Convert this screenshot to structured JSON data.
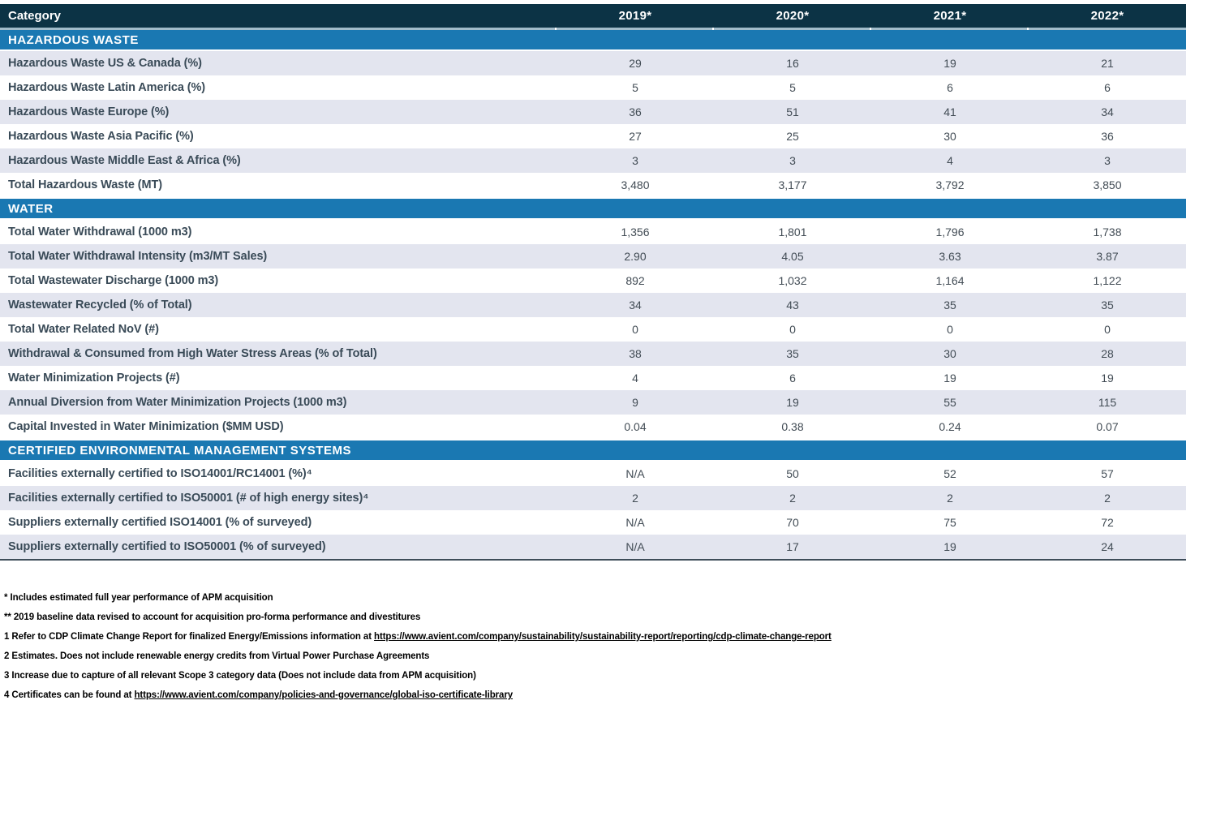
{
  "table": {
    "header": {
      "category_label": "Category",
      "years": [
        "2019*",
        "2020*",
        "2021*",
        "2022*"
      ]
    },
    "colors": {
      "header_bg": "#0c3345",
      "header_text": "#ffffff",
      "section_bg": "#1a78b2",
      "row_shaded_bg": "#e3e5ef",
      "row_white_bg": "#ffffff",
      "label_text": "#394a57",
      "value_text": "#424c55",
      "divider_strip": "#a2bcca",
      "bottom_border": "#3e4d59"
    },
    "sections": [
      {
        "title": "HAZARDOUS WASTE",
        "rows": [
          {
            "label": "Hazardous Waste US & Canada (%)",
            "values": [
              "29",
              "16",
              "19",
              "21"
            ],
            "shaded": true
          },
          {
            "label": "Hazardous Waste Latin America (%)",
            "values": [
              "5",
              "5",
              "6",
              "6"
            ],
            "shaded": false
          },
          {
            "label": "Hazardous Waste Europe (%)",
            "values": [
              "36",
              "51",
              "41",
              "34"
            ],
            "shaded": true
          },
          {
            "label": "Hazardous Waste Asia Pacific (%)",
            "values": [
              "27",
              "25",
              "30",
              "36"
            ],
            "shaded": false
          },
          {
            "label": "Hazardous Waste Middle East & Africa (%)",
            "values": [
              "3",
              "3",
              "4",
              "3"
            ],
            "shaded": true
          },
          {
            "label": "Total Hazardous Waste (MT)",
            "values": [
              "3,480",
              "3,177",
              "3,792",
              "3,850"
            ],
            "shaded": false
          }
        ]
      },
      {
        "title": "WATER",
        "rows": [
          {
            "label": "Total Water Withdrawal (1000 m3)",
            "values": [
              "1,356",
              "1,801",
              "1,796",
              "1,738"
            ],
            "shaded": false
          },
          {
            "label": "Total Water Withdrawal Intensity (m3/MT Sales)",
            "values": [
              "2.90",
              "4.05",
              "3.63",
              "3.87"
            ],
            "shaded": true
          },
          {
            "label": "Total Wastewater Discharge (1000 m3)",
            "values": [
              "892",
              "1,032",
              "1,164",
              "1,122"
            ],
            "shaded": false
          },
          {
            "label": "Wastewater Recycled (% of Total)",
            "values": [
              "34",
              "43",
              "35",
              "35"
            ],
            "shaded": true
          },
          {
            "label": "Total Water Related NoV (#)",
            "values": [
              "0",
              "0",
              "0",
              "0"
            ],
            "shaded": false
          },
          {
            "label": "Withdrawal & Consumed from High Water Stress Areas (% of Total)",
            "values": [
              "38",
              "35",
              "30",
              "28"
            ],
            "shaded": true
          },
          {
            "label": "Water Minimization Projects (#)",
            "values": [
              "4",
              "6",
              "19",
              "19"
            ],
            "shaded": false
          },
          {
            "label": "Annual Diversion from Water Minimization Projects (1000 m3)",
            "values": [
              "9",
              "19",
              "55",
              "115"
            ],
            "shaded": true
          },
          {
            "label": "Capital Invested in Water Minimization ($MM USD)",
            "values": [
              "0.04",
              "0.38",
              "0.24",
              "0.07"
            ],
            "shaded": false
          }
        ]
      },
      {
        "title": "CERTIFIED ENVIRONMENTAL MANAGEMENT SYSTEMS",
        "rows": [
          {
            "label": "Facilities externally certified to ISO14001/RC14001 (%)⁴",
            "values": [
              "N/A",
              "50",
              "52",
              "57"
            ],
            "shaded": false
          },
          {
            "label": "Facilities externally certified to ISO50001 (# of high energy sites)⁴",
            "values": [
              "2",
              "2",
              "2",
              "2"
            ],
            "shaded": true
          },
          {
            "label": "Suppliers externally certified ISO14001 (% of surveyed)",
            "values": [
              "N/A",
              "70",
              "75",
              "72"
            ],
            "shaded": false
          },
          {
            "label": "Suppliers externally certified to ISO50001 (% of surveyed)",
            "values": [
              "N/A",
              "17",
              "19",
              "24"
            ],
            "shaded": true
          }
        ]
      }
    ]
  },
  "footnotes": [
    {
      "segments": [
        {
          "text": "* Includes estimated full year performance of APM acquisition"
        }
      ]
    },
    {
      "segments": [
        {
          "text": "** 2019 baseline data revised to account for acquisition pro-forma performance and divestitures"
        }
      ]
    },
    {
      "segments": [
        {
          "text": "1 Refer to CDP Climate Change Report for finalized Energy/Emissions information at "
        },
        {
          "text": "https://www.avient.com/company/sustainability/sustainability-report/reporting/cdp-climate-change-report",
          "link": true
        }
      ]
    },
    {
      "segments": [
        {
          "text": "2 Estimates. Does not include renewable energy credits from Virtual Power Purchase Agreements"
        }
      ]
    },
    {
      "segments": [
        {
          "text": "3 Increase due to capture of all relevant Scope 3 category data (Does not include data from APM acquisition)"
        }
      ]
    },
    {
      "segments": [
        {
          "text": "4 Certificates can be found at "
        },
        {
          "text": "https://www.avient.com/company/policies-and-governance/global-iso-certificate-library",
          "link": true
        }
      ]
    }
  ]
}
